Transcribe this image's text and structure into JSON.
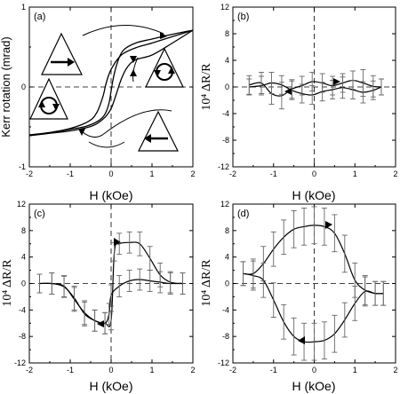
{
  "chart_data": [
    {
      "type": "line",
      "panel_label": "(a)",
      "xlabel": "H (kOe)",
      "ylabel": "Kerr rotation (mrad)",
      "xlim": [
        -2,
        2
      ],
      "ylim": [
        -1,
        1
      ],
      "xticks": [
        "-2",
        "-1",
        "0",
        "1",
        "2"
      ],
      "yticks": [
        "-1",
        "0",
        "1"
      ],
      "series": [
        {
          "values": [
            [
              -2,
              -0.61
            ],
            [
              -1.5,
              -0.575
            ],
            [
              -1,
              -0.53
            ],
            [
              -0.6,
              -0.49
            ],
            [
              -0.3,
              -0.42
            ],
            [
              -0.15,
              -0.34
            ],
            [
              -0.05,
              -0.2
            ],
            [
              0,
              -0.05
            ],
            [
              0.05,
              0.1
            ],
            [
              0.15,
              0.3
            ],
            [
              0.3,
              0.46
            ],
            [
              0.6,
              0.55
            ],
            [
              1,
              0.6
            ],
            [
              1.5,
              0.66
            ],
            [
              2,
              0.71
            ]
          ]
        },
        {
          "values": [
            [
              -2,
              -0.61
            ],
            [
              -1.5,
              -0.58
            ],
            [
              -1,
              -0.55
            ],
            [
              -0.6,
              -0.51
            ],
            [
              -0.35,
              -0.46
            ],
            [
              -0.15,
              -0.38
            ],
            [
              0,
              -0.27
            ],
            [
              0.12,
              -0.1
            ],
            [
              0.25,
              0.1
            ],
            [
              0.4,
              0.25
            ],
            [
              0.6,
              0.34
            ],
            [
              1,
              0.4
            ],
            [
              1.5,
              0.55
            ],
            [
              2,
              0.71
            ]
          ]
        },
        {
          "values": [
            [
              -2,
              -0.6
            ],
            [
              -1.5,
              -0.57
            ],
            [
              -1,
              -0.52
            ],
            [
              -0.55,
              -0.43
            ],
            [
              -0.35,
              -0.32
            ],
            [
              -0.2,
              -0.12
            ],
            [
              -0.12,
              0.05
            ],
            [
              0,
              0.22
            ],
            [
              0.25,
              0.4
            ],
            [
              0.6,
              0.49
            ],
            [
              1,
              0.55
            ],
            [
              1.5,
              0.63
            ],
            [
              2,
              0.71
            ]
          ]
        }
      ],
      "grid": false,
      "dashed_zero_lines": true
    },
    {
      "type": "line",
      "panel_label": "(b)",
      "xlabel": "H (kOe)",
      "ylabel": "10⁴ ΔR/R",
      "xlim": [
        -2,
        2
      ],
      "ylim": [
        -12,
        12
      ],
      "xticks": [
        "-2",
        "-1",
        "0",
        "1",
        "2"
      ],
      "yticks": [
        "-12",
        "-8",
        "-4",
        "0",
        "4",
        "8",
        "12"
      ],
      "series": [
        {
          "x": [
            -1.6,
            -1.3,
            -1.05,
            -0.8,
            -0.55,
            -0.3,
            -0.05,
            0.2,
            0.45,
            0.7,
            0.95,
            1.2,
            1.45,
            1.65
          ],
          "values": [
            0.3,
            0.6,
            -1.0,
            -1.3,
            -0.3,
            0.2,
            0.8,
            0.6,
            0.2,
            0.6,
            1.0,
            0.6,
            0.1,
            0.0
          ],
          "errors": [
            1.4,
            1.6,
            1.6,
            2.0,
            1.4,
            1.4,
            1.4,
            1.4,
            1.4,
            1.4,
            1.4,
            2.0,
            1.6,
            1.2
          ]
        },
        {
          "x": [
            -1.6,
            -1.3,
            -1.05,
            -0.8,
            -0.55,
            -0.3,
            -0.05,
            0.2,
            0.45,
            0.7,
            0.95,
            1.2,
            1.45,
            1.65
          ],
          "values": [
            0.0,
            0.2,
            0.6,
            0.3,
            -0.5,
            -1.0,
            -1.2,
            -0.7,
            -0.4,
            -0.1,
            -0.4,
            -0.8,
            -0.5,
            0.0
          ],
          "errors": [
            1.2,
            1.4,
            1.6,
            1.4,
            1.4,
            1.4,
            1.4,
            1.4,
            1.4,
            1.6,
            1.4,
            1.6,
            1.4,
            1.2
          ]
        }
      ],
      "grid": false,
      "dashed_zero_lines": true
    },
    {
      "type": "line",
      "panel_label": "(c)",
      "xlabel": "H (kOe)",
      "ylabel": "10⁴ ΔR/R",
      "xlim": [
        -2,
        2
      ],
      "ylim": [
        -12,
        12
      ],
      "xticks": [
        "-2",
        "-1",
        "0",
        "1",
        "2"
      ],
      "yticks": [
        "-12",
        "-8",
        "-4",
        "0",
        "4",
        "8",
        "12"
      ],
      "series": [
        {
          "x": [
            -1.75,
            -1.45,
            -1.15,
            -0.9,
            -0.65,
            -0.4,
            -0.15,
            0.0,
            0.08,
            0.2,
            0.45,
            0.7,
            0.95,
            1.2,
            1.45,
            1.75
          ],
          "values": [
            0.0,
            0.0,
            -0.5,
            -2.2,
            -4.6,
            -5.6,
            -6.0,
            -5.6,
            4.8,
            6.0,
            6.2,
            6.0,
            3.8,
            1.3,
            0.2,
            0.0
          ],
          "errors": [
            1.4,
            1.6,
            1.6,
            1.8,
            1.8,
            1.6,
            1.6,
            1.4,
            1.4,
            1.6,
            1.6,
            1.8,
            1.8,
            1.8,
            1.6,
            1.6
          ]
        },
        {
          "x": [
            -1.75,
            -1.45,
            -1.15,
            -0.9,
            -0.65,
            -0.4,
            -0.15,
            -0.05,
            0.0,
            0.2,
            0.45,
            0.7,
            0.95,
            1.2,
            1.45,
            1.75
          ],
          "values": [
            0.0,
            0.0,
            -0.4,
            -2.4,
            -4.4,
            -5.6,
            -6.0,
            -4.6,
            -1.8,
            -0.4,
            0.4,
            0.6,
            0.4,
            0.2,
            0.0,
            0.0
          ],
          "errors": [
            1.4,
            1.6,
            1.6,
            1.8,
            1.8,
            1.6,
            1.6,
            1.6,
            1.6,
            1.6,
            1.6,
            1.6,
            1.6,
            1.6,
            1.6,
            1.6
          ]
        }
      ],
      "grid": false,
      "dashed_zero_lines": true
    },
    {
      "type": "line",
      "panel_label": "(d)",
      "xlabel": "H (kOe)",
      "ylabel": "10⁴ ΔR/R",
      "xlim": [
        -2,
        2
      ],
      "ylim": [
        -12,
        12
      ],
      "xticks": [
        "-2",
        "-1",
        "0",
        "1",
        "2"
      ],
      "yticks": [
        "-12",
        "-8",
        "-4",
        "0",
        "4",
        "8",
        "12"
      ],
      "series": [
        {
          "x": [
            -1.75,
            -1.5,
            -1.25,
            -1.0,
            -0.75,
            -0.5,
            -0.25,
            0.0,
            0.25,
            0.5,
            0.75,
            1.0,
            1.25,
            1.5,
            1.7
          ],
          "values": [
            1.5,
            1.5,
            3.0,
            5.2,
            7.0,
            8.2,
            8.6,
            8.8,
            8.6,
            7.6,
            4.5,
            0.5,
            -1.0,
            -1.5,
            -1.5
          ],
          "errors": [
            1.8,
            2.2,
            2.6,
            2.6,
            2.6,
            2.8,
            2.8,
            2.8,
            2.8,
            2.8,
            2.8,
            2.6,
            2.2,
            1.8,
            1.8
          ]
        },
        {
          "x": [
            -1.75,
            -1.5,
            -1.25,
            -1.0,
            -0.75,
            -0.5,
            -0.25,
            0.0,
            0.25,
            0.5,
            0.75,
            1.0,
            1.25,
            1.5,
            1.7
          ],
          "values": [
            1.5,
            1.2,
            0.5,
            -2.5,
            -5.8,
            -8.0,
            -8.8,
            -8.8,
            -8.6,
            -7.6,
            -5.5,
            -3.0,
            -1.2,
            -1.5,
            -1.5
          ],
          "errors": [
            1.8,
            2.2,
            2.6,
            2.6,
            2.6,
            2.8,
            2.8,
            2.8,
            2.8,
            2.8,
            2.6,
            2.6,
            2.2,
            1.8,
            1.8
          ]
        }
      ],
      "grid": false,
      "dashed_zero_lines": true
    }
  ]
}
